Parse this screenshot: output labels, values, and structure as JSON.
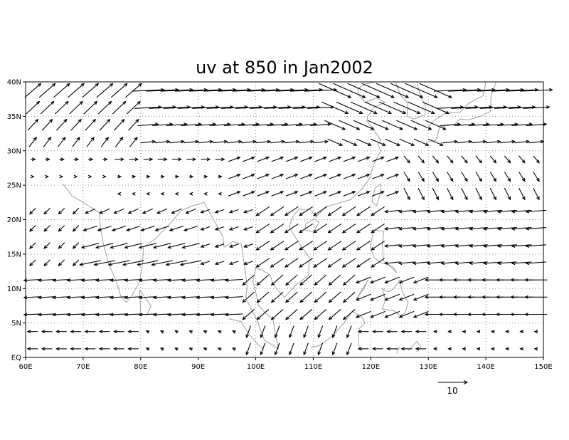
{
  "chart_data": {
    "type": "vector-field",
    "title": "uv at 850 in Jan2002",
    "x_ticks": [
      "60E",
      "70E",
      "80E",
      "90E",
      "100E",
      "110E",
      "120E",
      "130E",
      "140E",
      "150E"
    ],
    "y_ticks": [
      "EQ",
      "5N",
      "10N",
      "15N",
      "20N",
      "25N",
      "30N",
      "35N",
      "40N"
    ],
    "xlim": [
      60,
      150
    ],
    "ylim": [
      0,
      40
    ],
    "grid": true,
    "reference_vector": {
      "magnitude": 10,
      "label": "10"
    },
    "vector_spacing_deg": 2.5,
    "vector_description": "Monthly mean 850 hPa wind vectors (u, v) sampled on a 2.5-degree grid; westerlies north of ~28N, northeasterly trades over the Bay of Bengal / South China Sea, easterlies over the western Pacific, cross-equatorial flow near 100-110E.",
    "colors": {
      "arrows": "#000000",
      "coastline": "#a0a0a0",
      "grid": "#909090",
      "frame": "#000000"
    }
  },
  "chart_title": "uv at 850 in Jan2002",
  "ref_label": "10"
}
